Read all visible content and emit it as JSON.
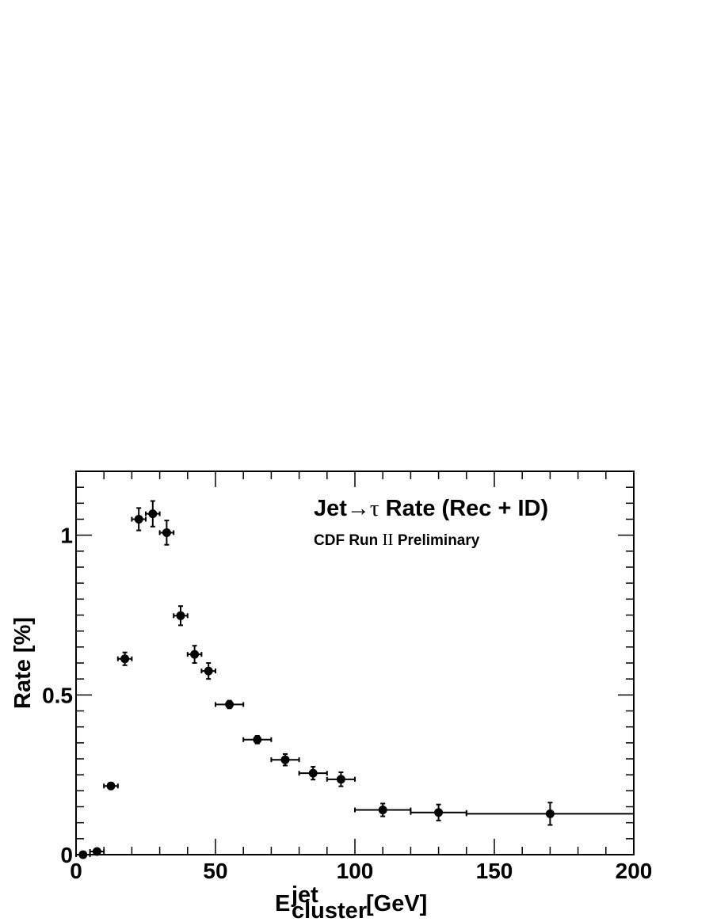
{
  "chart_data": {
    "type": "scatter",
    "title_parts": {
      "prefix": "Jet",
      "arrow": "→",
      "tau": "τ",
      "suffix": " Rate (Rec + ID)"
    },
    "subtitle_parts": {
      "prefix": "CDF Run ",
      "numeral": "II",
      "suffix": " Preliminary"
    },
    "xlabel": {
      "base": "E",
      "sup": "jet",
      "sub": "cluster",
      "unit": "[GeV]"
    },
    "ylabel": "Rate  [%]",
    "xlim": [
      0,
      200
    ],
    "ylim": [
      0,
      1.2
    ],
    "xticks": [
      0,
      50,
      100,
      150,
      200
    ],
    "xtick_labels": [
      "0",
      "50",
      "100",
      "150",
      "200"
    ],
    "yticks": [
      0,
      0.5,
      1
    ],
    "ytick_labels": [
      "0",
      "0.5",
      "1"
    ],
    "grid": false,
    "points": [
      {
        "x": 2.5,
        "xerr": 2.5,
        "y": 0.0,
        "yerr": 0.003
      },
      {
        "x": 7.5,
        "xerr": 2.5,
        "y": 0.01,
        "yerr": 0.004
      },
      {
        "x": 12.5,
        "xerr": 2.5,
        "y": 0.215,
        "yerr": 0.01
      },
      {
        "x": 17.5,
        "xerr": 2.5,
        "y": 0.613,
        "yerr": 0.02
      },
      {
        "x": 22.5,
        "xerr": 2.5,
        "y": 1.05,
        "yerr": 0.035
      },
      {
        "x": 27.5,
        "xerr": 2.5,
        "y": 1.067,
        "yerr": 0.04
      },
      {
        "x": 32.5,
        "xerr": 2.5,
        "y": 1.008,
        "yerr": 0.038
      },
      {
        "x": 37.5,
        "xerr": 2.5,
        "y": 0.748,
        "yerr": 0.03
      },
      {
        "x": 42.5,
        "xerr": 2.5,
        "y": 0.627,
        "yerr": 0.027
      },
      {
        "x": 47.5,
        "xerr": 2.5,
        "y": 0.575,
        "yerr": 0.025
      },
      {
        "x": 55.0,
        "xerr": 5.0,
        "y": 0.47,
        "yerr": 0.012
      },
      {
        "x": 65.0,
        "xerr": 5.0,
        "y": 0.36,
        "yerr": 0.012
      },
      {
        "x": 75.0,
        "xerr": 5.0,
        "y": 0.297,
        "yerr": 0.018
      },
      {
        "x": 85.0,
        "xerr": 5.0,
        "y": 0.255,
        "yerr": 0.02
      },
      {
        "x": 95.0,
        "xerr": 5.0,
        "y": 0.236,
        "yerr": 0.022
      },
      {
        "x": 110.0,
        "xerr": 10.0,
        "y": 0.14,
        "yerr": 0.02
      },
      {
        "x": 130.0,
        "xerr": 10.0,
        "y": 0.132,
        "yerr": 0.025
      },
      {
        "x": 170.0,
        "xerr": 30.0,
        "y": 0.128,
        "yerr": 0.035
      }
    ]
  }
}
